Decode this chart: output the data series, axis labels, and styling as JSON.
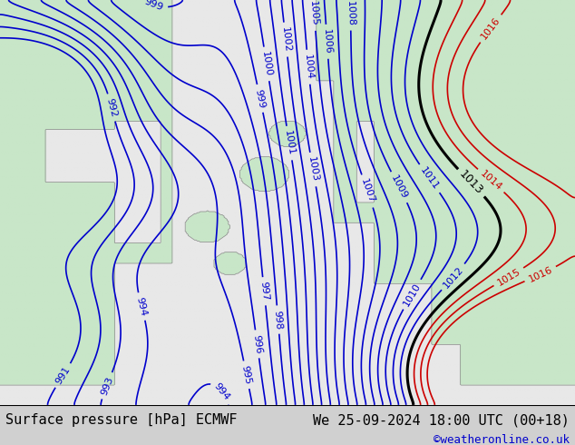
{
  "title_left": "Surface pressure [hPa] ECMWF",
  "title_right": "We 25-09-2024 18:00 UTC (00+18)",
  "credit": "©weatheronline.co.uk",
  "bg_color": "#d0d0d0",
  "land_color_rgb": [
    200,
    230,
    200
  ],
  "sea_color_rgb": [
    232,
    232,
    232
  ],
  "contour_color_blue": "#0000cc",
  "contour_color_black": "#000000",
  "contour_color_red": "#cc0000",
  "bottom_bar_color": "#f0f0f0",
  "font_size_title": 11,
  "font_size_credit": 9,
  "font_size_label": 8,
  "fig_width": 6.34,
  "fig_height": 4.9,
  "blue_levels": [
    991,
    992,
    993,
    994,
    995,
    996,
    997,
    998,
    999,
    1000,
    1001,
    1002,
    1003,
    1004,
    1005,
    1006,
    1007,
    1008,
    1009,
    1010,
    1011,
    1012
  ],
  "black_levels": [
    1013
  ],
  "red_levels": [
    1014,
    1015,
    1016
  ]
}
